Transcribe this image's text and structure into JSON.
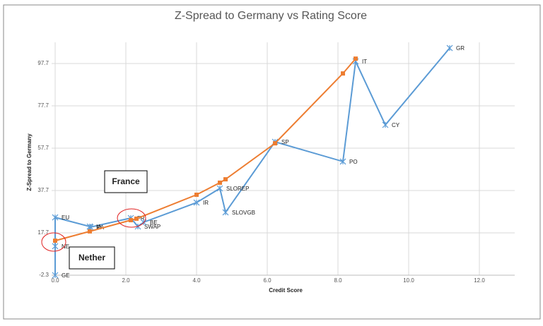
{
  "chart_data": {
    "type": "line",
    "title": "Z-Spread to Germany vs Rating Score",
    "x_label": "Credit Score",
    "y_label": "Z-Spread to Germany",
    "xlim": [
      -0.1,
      13
    ],
    "ylim": [
      -2.3,
      107.7
    ],
    "xticks": [
      {
        "value": 0,
        "label": "0.0"
      },
      {
        "value": 2,
        "label": "2.0"
      },
      {
        "value": 4,
        "label": "4.0"
      },
      {
        "value": 6,
        "label": "6.0"
      },
      {
        "value": 8,
        "label": "8.0"
      },
      {
        "value": 10,
        "label": "10.0"
      },
      {
        "value": 12,
        "label": "12.0"
      }
    ],
    "yticks": [
      -2.3,
      17.7,
      37.7,
      57.7,
      77.7,
      97.7
    ],
    "grid": true,
    "series": [
      {
        "color": "#5b9bd5",
        "marker": "asterisk",
        "x": [
          0,
          0,
          0,
          0.98,
          1.0,
          2.14,
          2.34,
          2.5,
          4.0,
          4.66,
          4.82,
          6.22,
          8.14,
          8.5,
          9.34,
          11.16
        ],
        "values": [
          -2.3,
          11.4,
          25.0,
          20.7,
          20.4,
          24.7,
          20.7,
          22.7,
          32.0,
          38.7,
          27.4,
          60.7,
          51.4,
          98.7,
          68.7,
          105.0
        ],
        "labels": [
          "GE",
          "NE",
          "EU",
          "IA",
          "PA",
          "FR",
          "SWAP",
          "BE",
          "IR",
          "SLOREP",
          "SLOVGB",
          "SP",
          "PO",
          "IT",
          "CY",
          "GR"
        ]
      },
      {
        "color": "#ed7d31",
        "marker": "square",
        "x": [
          0,
          0.98,
          2.14,
          2.3,
          4.0,
          4.66,
          4.82,
          6.22,
          8.14,
          8.5
        ],
        "values": [
          14.0,
          18.4,
          23.7,
          24.4,
          35.7,
          41.4,
          43.0,
          60.0,
          93.0,
          100.0
        ]
      }
    ],
    "annotations": [
      "France",
      "Nether"
    ]
  }
}
